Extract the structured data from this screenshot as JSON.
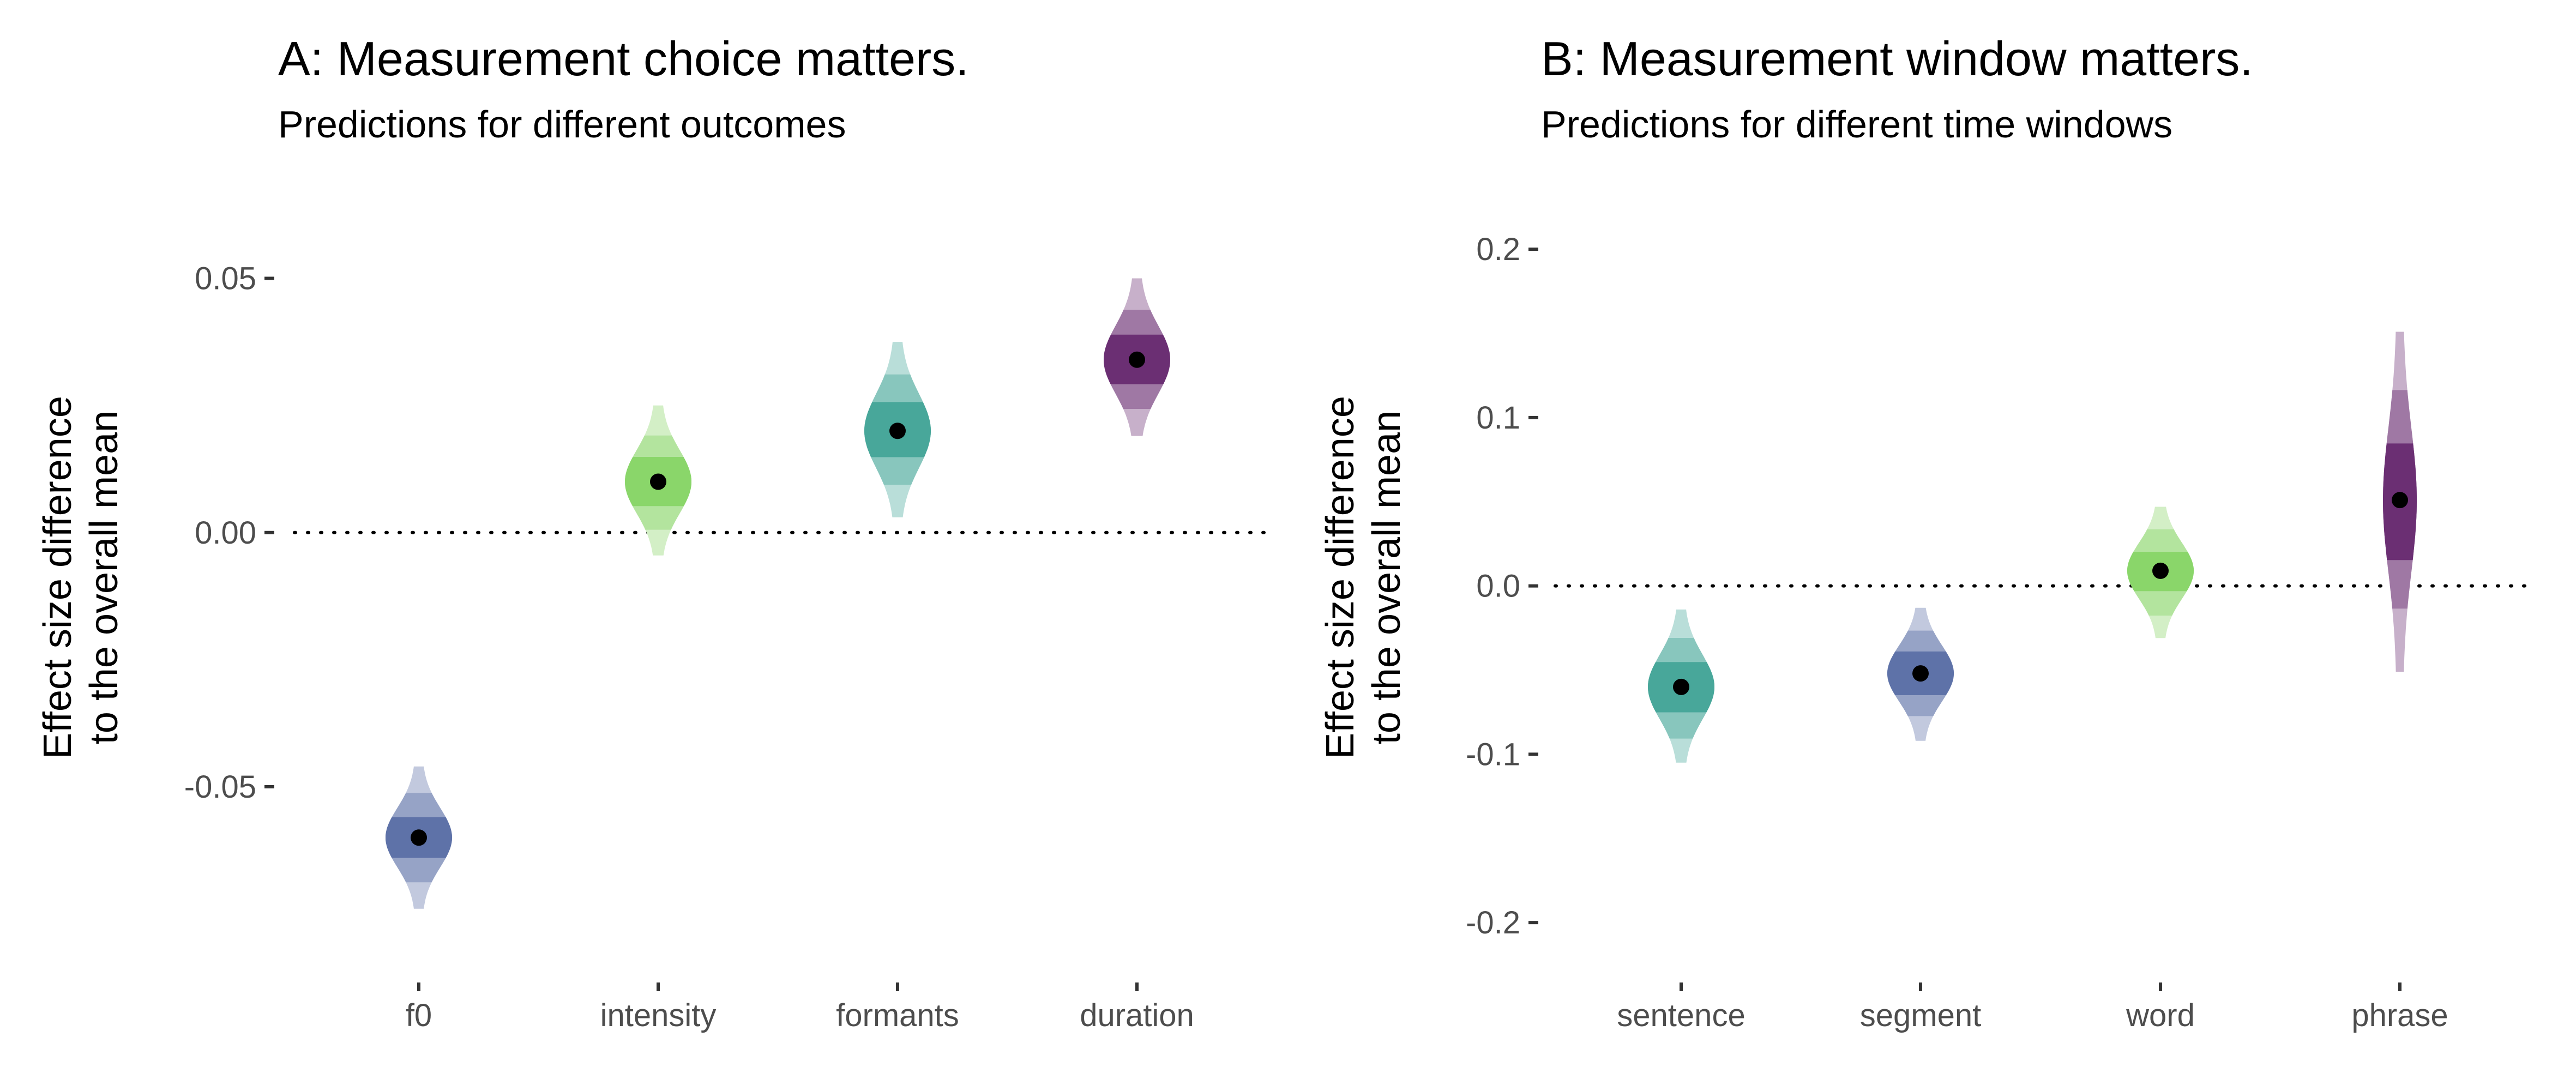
{
  "chart_data": [
    {
      "type": "violin",
      "title": "A: Measurement choice matters.",
      "subtitle": "Predictions for different outcomes",
      "ylabel": [
        "Effect size difference",
        "to the overall mean"
      ],
      "xlabel": "",
      "categories": [
        "f0",
        "intensity",
        "formants",
        "duration"
      ],
      "yticks": [
        -0.05,
        0.0,
        0.05
      ],
      "ytick_labels": [
        "-0.05",
        "0.00",
        "0.05"
      ],
      "ylim": [
        -0.084,
        0.064
      ],
      "reference_line": 0.0,
      "grid": false,
      "points": [
        {
          "category": "f0",
          "value": -0.06,
          "color": "#5e72a8",
          "band_levels": [
            [
              -0.064,
              -0.056
            ],
            [
              -0.069,
              -0.051
            ],
            [
              -0.074,
              -0.046
            ]
          ],
          "max_half_width": 0.055
        },
        {
          "category": "intensity",
          "value": 0.01,
          "color": "#8ad66a",
          "band_levels": [
            [
              0.005,
              0.015
            ],
            [
              0.0005,
              0.0195
            ],
            [
              -0.0045,
              0.025
            ]
          ],
          "max_half_width": 0.055
        },
        {
          "category": "formants",
          "value": 0.02,
          "color": "#48a79a",
          "band_levels": [
            [
              0.0145,
              0.026
            ],
            [
              0.009,
              0.0315
            ],
            [
              0.003,
              0.0375
            ]
          ],
          "max_half_width": 0.055
        },
        {
          "category": "duration",
          "value": 0.034,
          "color": "#6b2f73",
          "band_levels": [
            [
              0.029,
              0.039
            ],
            [
              0.024,
              0.044
            ],
            [
              0.019,
              0.05
            ]
          ],
          "max_half_width": 0.055
        }
      ]
    },
    {
      "type": "violin",
      "title": "B: Measurement window matters.",
      "subtitle": "Predictions for different time windows",
      "ylabel": [
        "Effect size difference",
        "to the overall mean"
      ],
      "xlabel": "",
      "categories": [
        "sentence",
        "segment",
        "word",
        "phrase"
      ],
      "yticks": [
        -0.2,
        -0.1,
        0.0,
        0.1,
        0.2
      ],
      "ytick_labels": [
        "-0.2",
        "-0.1",
        "0.0",
        "0.1",
        "0.2"
      ],
      "ylim": [
        -0.222,
        0.225
      ],
      "reference_line": 0.0,
      "grid": false,
      "points": [
        {
          "category": "sentence",
          "value": -0.06,
          "color": "#48a79a",
          "band_levels": [
            [
              -0.076,
              -0.045
            ],
            [
              -0.091,
              -0.03
            ],
            [
              -0.105,
              -0.014
            ]
          ],
          "max_half_width": 0.055
        },
        {
          "category": "segment",
          "value": -0.052,
          "color": "#5e72a8",
          "band_levels": [
            [
              -0.065,
              -0.038
            ],
            [
              -0.078,
              -0.026
            ],
            [
              -0.092,
              -0.013
            ]
          ],
          "max_half_width": 0.055
        },
        {
          "category": "word",
          "value": 0.009,
          "color": "#8ad66a",
          "band_levels": [
            [
              -0.004,
              0.021
            ],
            [
              -0.018,
              0.034
            ],
            [
              -0.031,
              0.047
            ]
          ],
          "max_half_width": 0.055
        },
        {
          "category": "phrase",
          "value": 0.051,
          "color": "#6b2f73",
          "band_levels": [
            [
              0.015,
              0.085
            ],
            [
              -0.016,
              0.118
            ],
            [
              -0.051,
              0.151
            ]
          ],
          "max_half_width": 0.025
        }
      ]
    }
  ]
}
